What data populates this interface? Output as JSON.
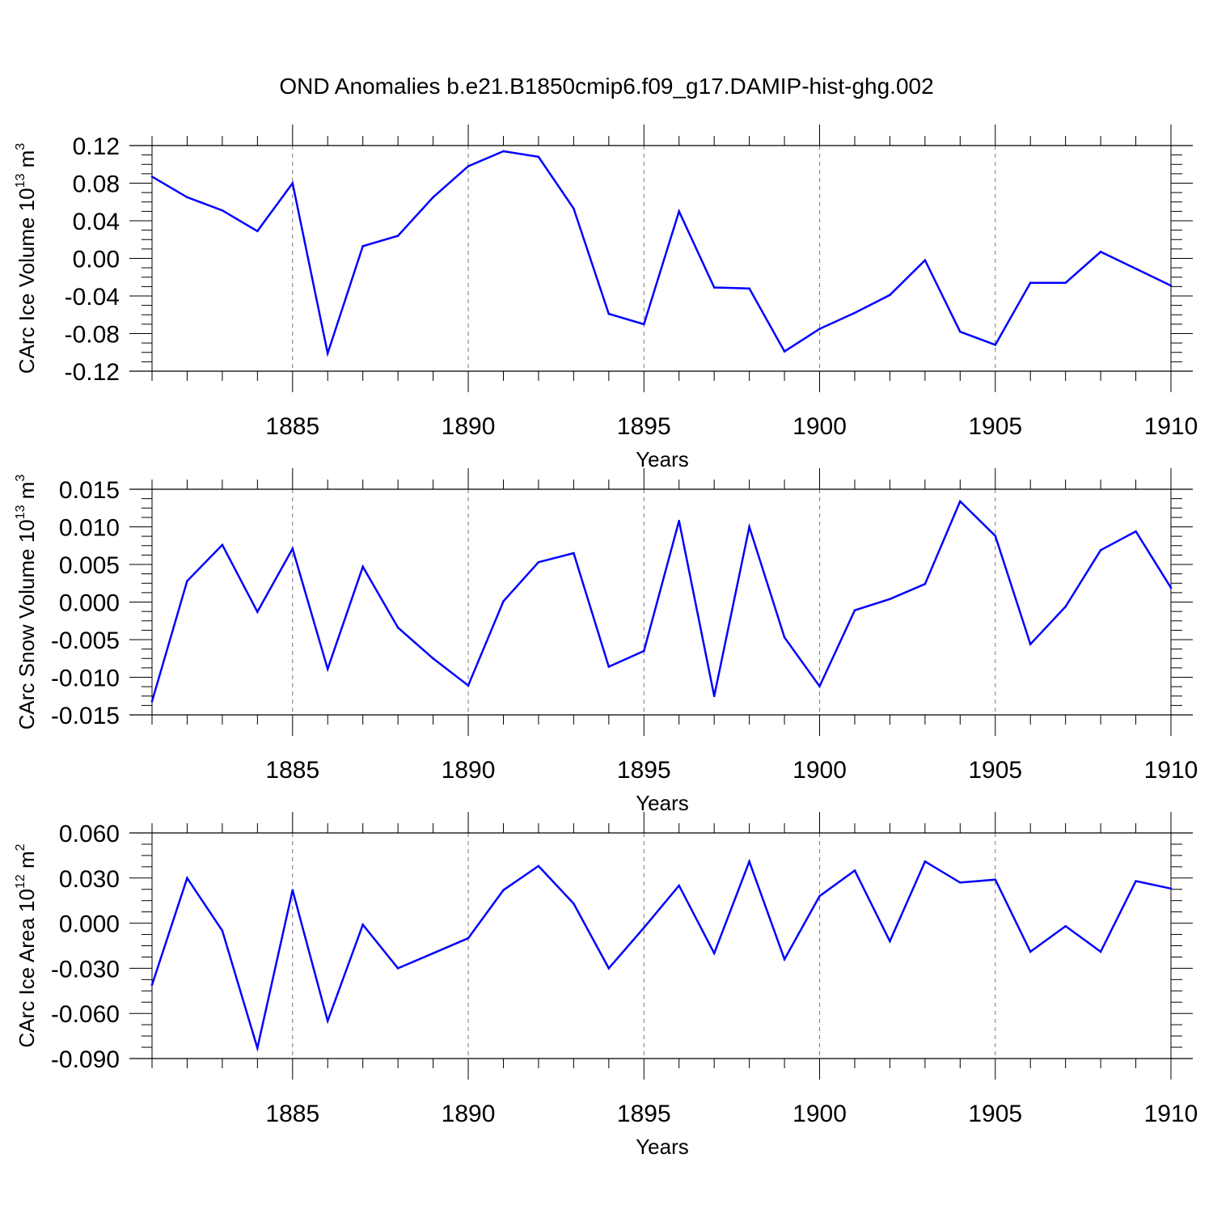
{
  "title": "OND Anomalies b.e21.B1850cmip6.f09_g17.DAMIP-hist-ghg.002",
  "chart_data": [
    {
      "type": "line",
      "title": "OND Anomalies b.e21.B1850cmip6.f09_g17.DAMIP-hist-ghg.002",
      "xlabel": "Years",
      "ylabel": {
        "text": "CArc Ice Volume 10",
        "exp": "13",
        "unit": " m",
        "unit_exp": "3"
      },
      "xlim": [
        1881,
        1910
      ],
      "ylim": [
        -0.12,
        0.12
      ],
      "xticks": [
        "1885",
        "1890",
        "1895",
        "1900",
        "1905",
        "1910"
      ],
      "yticks": [
        "-0.12",
        "-0.08",
        "-0.04",
        "0.00",
        "0.04",
        "0.08",
        "0.12"
      ],
      "grid": "vertical dashed at major x ticks",
      "series": [
        {
          "color": "#0000ff",
          "x": [
            1881,
            1882,
            1883,
            1884,
            1885,
            1886,
            1887,
            1888,
            1889,
            1890,
            1891,
            1892,
            1893,
            1894,
            1895,
            1896,
            1897,
            1898,
            1899,
            1900,
            1901,
            1902,
            1903,
            1904,
            1905,
            1906,
            1907,
            1908,
            1909,
            1910
          ],
          "values": [
            0.087,
            0.065,
            0.051,
            0.029,
            0.08,
            -0.101,
            0.013,
            0.024,
            0.065,
            0.098,
            0.114,
            0.108,
            0.053,
            -0.059,
            -0.07,
            0.05,
            -0.031,
            -0.032,
            -0.099,
            -0.075,
            -0.058,
            -0.039,
            -0.002,
            -0.078,
            -0.092,
            -0.026,
            -0.026,
            0.007,
            -0.011,
            -0.029
          ]
        }
      ]
    },
    {
      "type": "line",
      "xlabel": "Years",
      "ylabel": {
        "text": "CArc Snow Volume 10",
        "exp": "13",
        "unit": " m",
        "unit_exp": "3"
      },
      "xlim": [
        1881,
        1910
      ],
      "ylim": [
        -0.015,
        0.015
      ],
      "xticks": [
        "1885",
        "1890",
        "1895",
        "1900",
        "1905",
        "1910"
      ],
      "yticks": [
        "-0.015",
        "-0.010",
        "-0.005",
        "0.000",
        "0.005",
        "0.010",
        "0.015"
      ],
      "grid": "vertical dashed at major x ticks",
      "series": [
        {
          "color": "#0000ff",
          "x": [
            1881,
            1882,
            1883,
            1884,
            1885,
            1886,
            1887,
            1888,
            1889,
            1890,
            1891,
            1892,
            1893,
            1894,
            1895,
            1896,
            1897,
            1898,
            1899,
            1900,
            1901,
            1902,
            1903,
            1904,
            1905,
            1906,
            1907,
            1908,
            1909,
            1910
          ],
          "values": [
            -0.0132,
            0.0028,
            0.0076,
            -0.0013,
            0.0071,
            -0.0089,
            0.0047,
            -0.0034,
            -0.0075,
            -0.0111,
            0.0001,
            0.0053,
            0.0065,
            -0.0086,
            -0.0065,
            0.0108,
            -0.0125,
            0.01,
            -0.0047,
            -0.0112,
            -0.0011,
            0.0004,
            0.0024,
            0.0134,
            0.0088,
            -0.0056,
            -0.0006,
            0.0069,
            0.0094,
            0.0019
          ]
        }
      ]
    },
    {
      "type": "line",
      "xlabel": "Years",
      "ylabel": {
        "text": "CArc Ice Area 10",
        "exp": "12",
        "unit": " m",
        "unit_exp": "2"
      },
      "xlim": [
        1881,
        1910
      ],
      "ylim": [
        -0.09,
        0.06
      ],
      "xticks": [
        "1885",
        "1890",
        "1895",
        "1900",
        "1905",
        "1910"
      ],
      "yticks": [
        "-0.090",
        "-0.060",
        "-0.030",
        "0.000",
        "0.030",
        "0.060"
      ],
      "grid": "vertical dashed at major x ticks",
      "series": [
        {
          "color": "#0000ff",
          "x": [
            1881,
            1882,
            1883,
            1884,
            1885,
            1886,
            1887,
            1888,
            1889,
            1890,
            1891,
            1892,
            1893,
            1894,
            1895,
            1896,
            1897,
            1898,
            1899,
            1900,
            1901,
            1902,
            1903,
            1904,
            1905,
            1906,
            1907,
            1908,
            1909,
            1910
          ],
          "values": [
            -0.041,
            0.03,
            -0.005,
            -0.083,
            0.022,
            -0.065,
            -0.001,
            -0.03,
            -0.02,
            -0.01,
            0.022,
            0.038,
            0.013,
            -0.03,
            -0.003,
            0.025,
            -0.02,
            0.041,
            -0.024,
            0.018,
            0.035,
            -0.012,
            0.041,
            0.027,
            0.029,
            -0.019,
            -0.002,
            -0.019,
            0.028,
            0.023
          ]
        }
      ]
    }
  ]
}
